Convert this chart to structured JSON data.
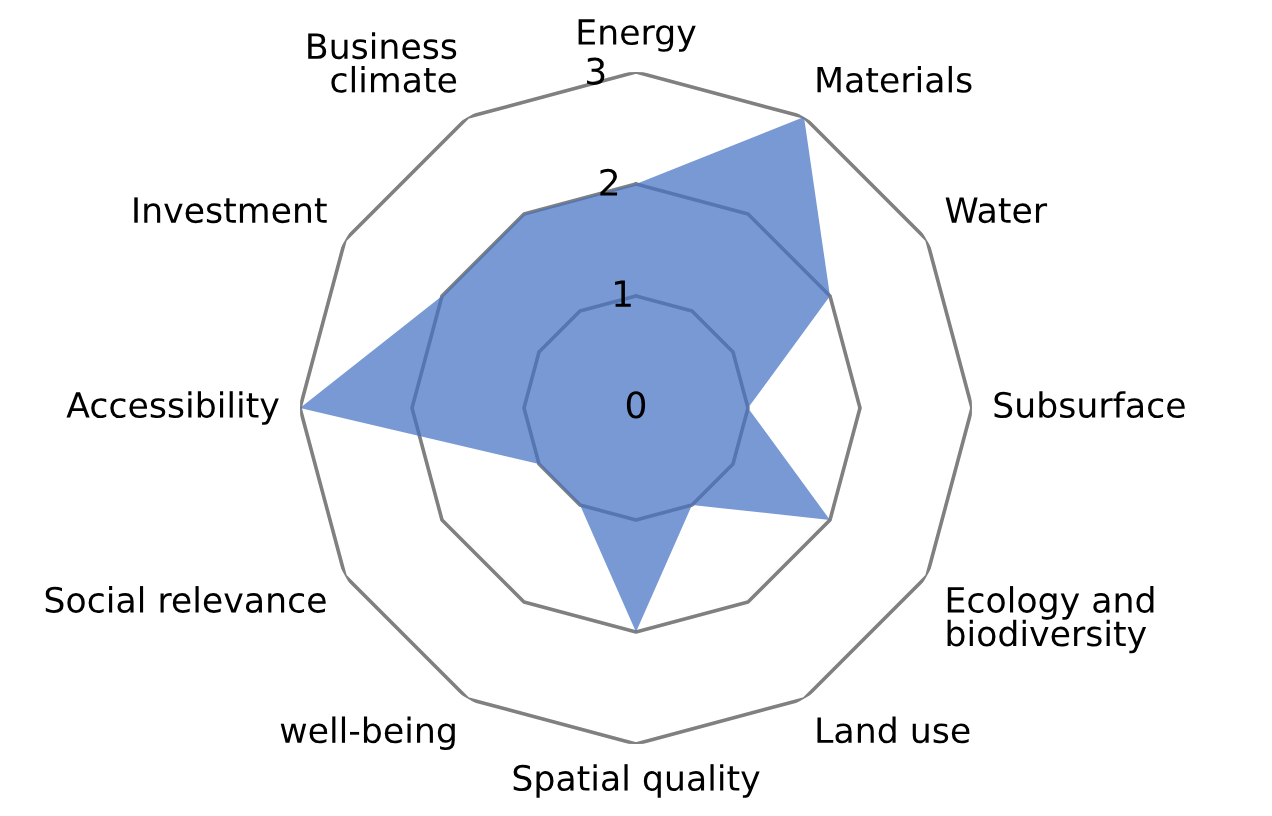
{
  "chart_data": {
    "type": "radar",
    "categories": [
      "Energy",
      "Materials",
      "Water",
      "Subsurface",
      "Ecology and\nbiodiversity",
      "Land use",
      "Spatial quality",
      "well-being",
      "Social relevance",
      "Accessibility",
      "Investment",
      "Business\nclimate"
    ],
    "series": [
      {
        "color": "#4472c4",
        "values": [
          2,
          3,
          2,
          1,
          2,
          1,
          2,
          1,
          1,
          3,
          2,
          2
        ]
      }
    ],
    "ylim": [
      0,
      3
    ],
    "yticks": [
      0,
      1,
      2,
      3
    ],
    "grid": true,
    "legend": false
  }
}
